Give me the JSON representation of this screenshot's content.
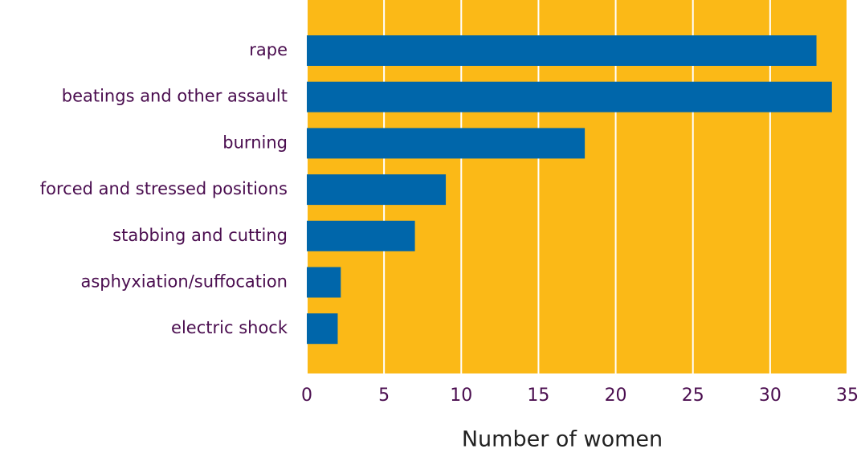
{
  "chart_data": {
    "type": "barh",
    "categories": [
      "rape",
      "beatings and other assault",
      "burning",
      "forced and stressed positions",
      "stabbing and cutting",
      "asphyxiation/suffocation",
      "electric shock"
    ],
    "values": [
      33,
      34,
      18,
      9,
      7,
      2.2,
      2
    ],
    "color": "#0066aa",
    "background": "#fbb917",
    "xlabel": "Number of women",
    "xlim": [
      0,
      35
    ],
    "xticks": [
      0,
      5,
      10,
      15,
      20,
      25,
      30,
      35
    ],
    "grid": true
  }
}
